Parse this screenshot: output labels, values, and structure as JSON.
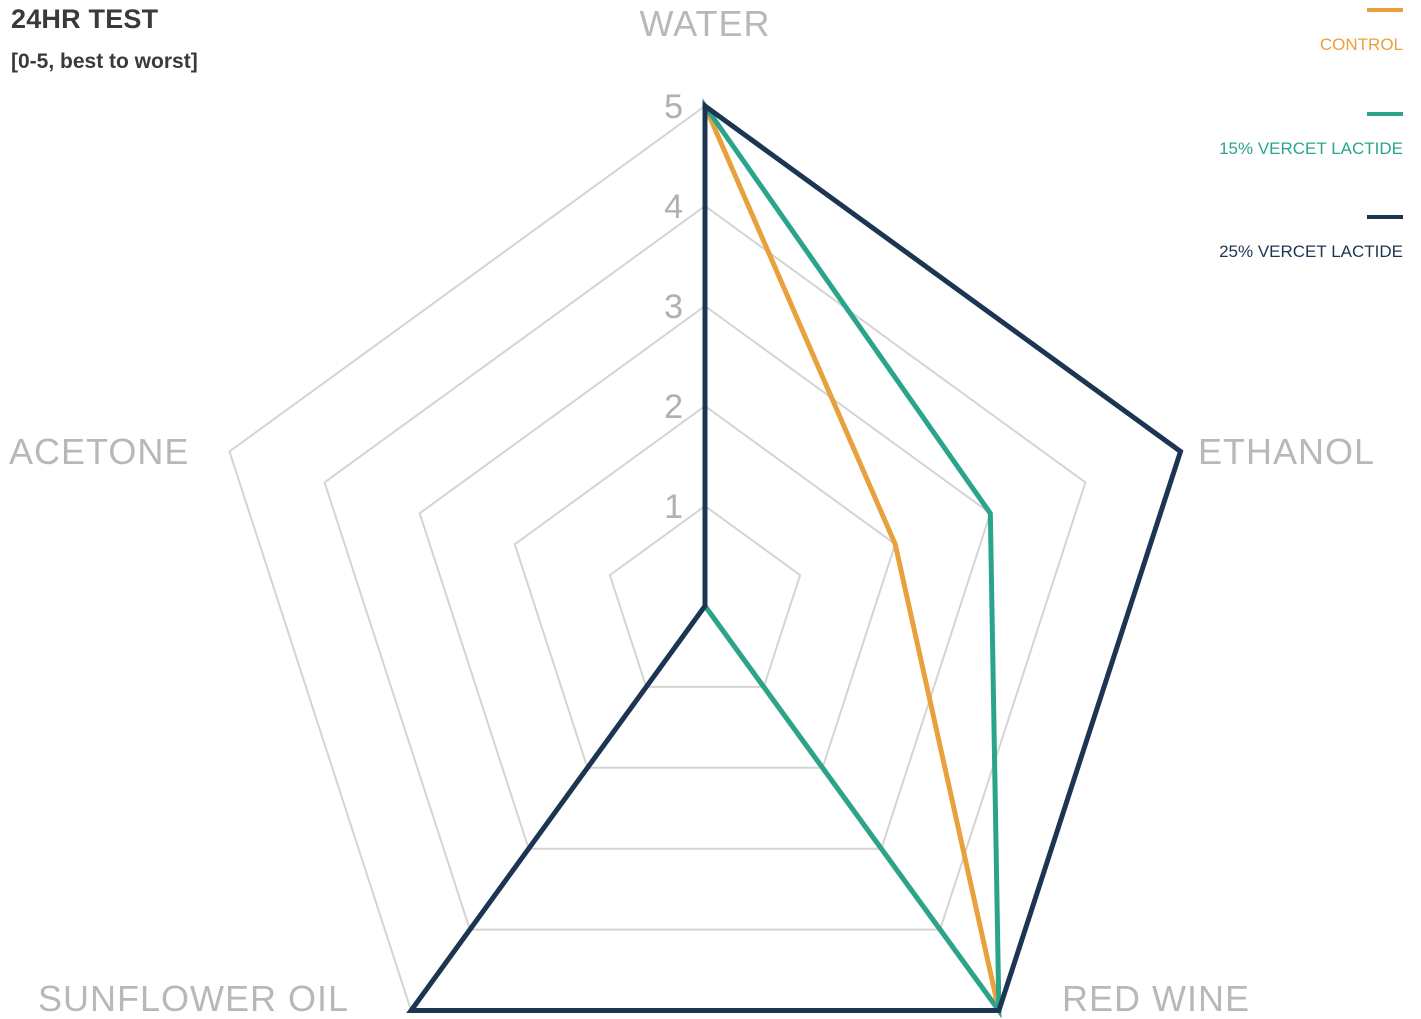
{
  "chart_data": {
    "type": "radar",
    "title": "24HR TEST",
    "subtitle": "[0-5, best to worst]",
    "axes": [
      "WATER",
      "ETHANOL",
      "RED WINE",
      "SUNFLOWER OIL",
      "ACETONE"
    ],
    "range": [
      0,
      5
    ],
    "ticks": [
      1,
      2,
      3,
      4,
      5
    ],
    "grid": true,
    "legend_position": "top-right",
    "series": [
      {
        "name": "CONTROL",
        "color": "#e8a13c",
        "values": [
          5,
          2,
          5,
          0,
          0
        ]
      },
      {
        "name": "15% VERCET LACTIDE",
        "color": "#2aa58c",
        "values": [
          5,
          3,
          5,
          0,
          0
        ]
      },
      {
        "name": "25% VERCET LACTIDE",
        "color": "#1c3552",
        "values": [
          5,
          5,
          5,
          5,
          0
        ]
      }
    ],
    "grid_color": "#d4d4d4"
  }
}
